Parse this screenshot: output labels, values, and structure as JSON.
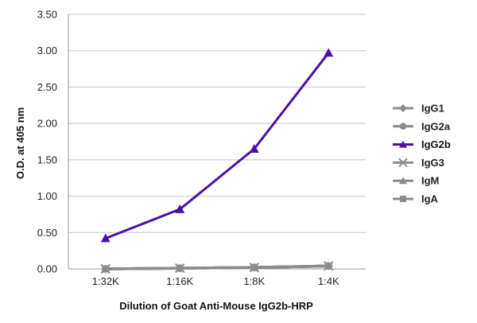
{
  "chart_data": {
    "type": "line",
    "title": "",
    "xlabel": "Dilution of Goat Anti-Mouse IgG2b-HRP",
    "ylabel": "O.D. at 405 nm",
    "categories": [
      "1:32K",
      "1:16K",
      "1:8K",
      "1:4K"
    ],
    "ylim": [
      0,
      3.5
    ],
    "yticks": [
      "0.00",
      "0.50",
      "1.00",
      "1.50",
      "2.00",
      "2.50",
      "3.00",
      "3.50"
    ],
    "grid": "horizontal",
    "legend_position": "right",
    "series": [
      {
        "name": "IgG1",
        "values": [
          0.0,
          0.01,
          0.02,
          0.04
        ],
        "color": "#8c8c8c",
        "marker": "diamond"
      },
      {
        "name": "IgG2a",
        "values": [
          0.0,
          0.01,
          0.02,
          0.04
        ],
        "color": "#8c8c8c",
        "marker": "circle"
      },
      {
        "name": "IgG2b",
        "values": [
          0.42,
          0.82,
          1.65,
          2.97
        ],
        "color": "#4b0fa6",
        "marker": "triangle"
      },
      {
        "name": "IgG3",
        "values": [
          0.0,
          0.01,
          0.02,
          0.04
        ],
        "color": "#8c8c8c",
        "marker": "x"
      },
      {
        "name": "IgM",
        "values": [
          0.0,
          0.01,
          0.02,
          0.04
        ],
        "color": "#8c8c8c",
        "marker": "triangle"
      },
      {
        "name": "IgA",
        "values": [
          0.0,
          0.01,
          0.02,
          0.04
        ],
        "color": "#8c8c8c",
        "marker": "square"
      }
    ]
  }
}
